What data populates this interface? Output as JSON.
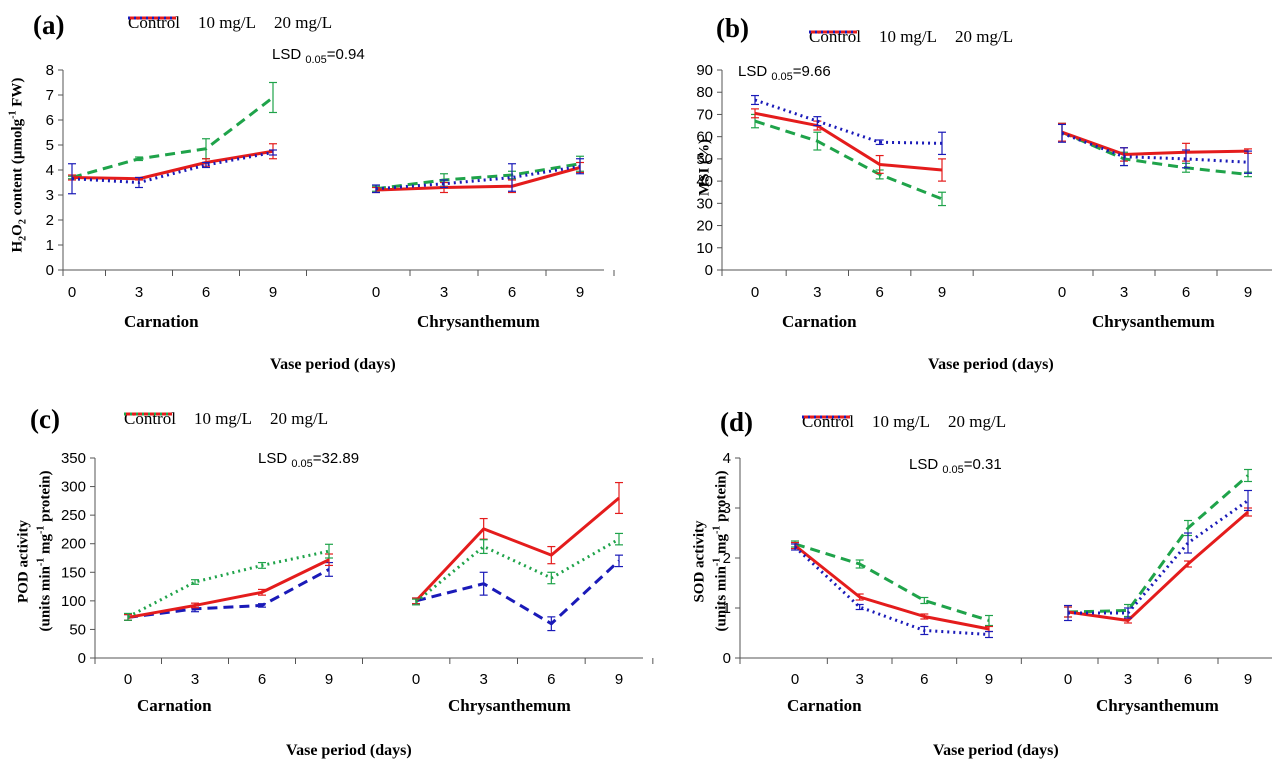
{
  "chart_data": [
    {
      "type": "line",
      "panel_label": "(a)",
      "ylabel_main": "H2O2 content (µmolg",
      "ylabel_sup": "-1",
      "ylabel_tail": " FW)",
      "xlabel": "Vase period (days)",
      "lsd_label": "LSD",
      "lsd_sub": "0.05",
      "lsd_value": "=0.94",
      "ylim": [
        0,
        8
      ],
      "yticks": [
        0,
        1,
        2,
        3,
        4,
        5,
        6,
        7,
        8
      ],
      "groups": [
        "Carnation",
        "Chrysanthemum"
      ],
      "x": [
        0,
        3,
        6,
        9
      ],
      "series_colors": [
        "#1fa34a",
        "#e41c1c",
        "#1a1ab8"
      ],
      "series_styles": [
        "dashed",
        "solid",
        "dotted"
      ],
      "legend": [
        "Control",
        "10 mg/L",
        "20 mg/L"
      ],
      "series": [
        {
          "name": "Control",
          "group_values": [
            [
              3.7,
              4.45,
              4.85,
              6.9
            ],
            [
              3.25,
              3.6,
              3.8,
              4.25
            ]
          ],
          "errors": [
            [
              0.05,
              0.07,
              0.4,
              0.6
            ],
            [
              0.1,
              0.25,
              0.15,
              0.3
            ]
          ]
        },
        {
          "name": "10 mg/L",
          "group_values": [
            [
              3.7,
              3.65,
              4.3,
              4.75
            ],
            [
              3.2,
              3.3,
              3.35,
              4.1
            ]
          ],
          "errors": [
            [
              0.1,
              0.05,
              0.15,
              0.3
            ],
            [
              0.1,
              0.2,
              0.25,
              0.2
            ]
          ]
        },
        {
          "name": "20 mg/L",
          "group_values": [
            [
              3.65,
              3.5,
              4.2,
              4.7
            ],
            [
              3.25,
              3.45,
              3.7,
              4.15
            ]
          ],
          "errors": [
            [
              0.6,
              0.2,
              0.1,
              0.1
            ],
            [
              0.15,
              0.15,
              0.55,
              0.3
            ]
          ]
        }
      ]
    },
    {
      "type": "line",
      "panel_label": "(b)",
      "ylabel_main": "MSI (%)",
      "xlabel": "Vase period (days)",
      "lsd_label": "LSD",
      "lsd_sub": "0.05",
      "lsd_value": "=9.66",
      "ylim": [
        0,
        90
      ],
      "yticks": [
        0,
        10,
        20,
        30,
        40,
        50,
        60,
        70,
        80,
        90
      ],
      "groups": [
        "Carnation",
        "Chrysanthemum"
      ],
      "x": [
        0,
        3,
        6,
        9
      ],
      "series_colors": [
        "#1fa34a",
        "#e41c1c",
        "#1a1ab8"
      ],
      "series_styles": [
        "dashed",
        "solid",
        "dotted"
      ],
      "legend": [
        "Control",
        "10 mg/L",
        "20 mg/L"
      ],
      "series": [
        {
          "name": "Control",
          "group_values": [
            [
              67,
              58,
              43,
              32
            ],
            [
              62,
              50,
              46,
              43
            ]
          ],
          "errors": [
            [
              3,
              4,
              2,
              3
            ],
            [
              4,
              3,
              2,
              1
            ]
          ]
        },
        {
          "name": "10 mg/L",
          "group_values": [
            [
              70.5,
              65,
              47.5,
              45
            ],
            [
              62,
              52,
              53,
              53.5
            ]
          ],
          "errors": [
            [
              2,
              2,
              4,
              5
            ],
            [
              4,
              3,
              4,
              1
            ]
          ]
        },
        {
          "name": "20 mg/L",
          "group_values": [
            [
              76.5,
              67,
              57.5,
              57
            ],
            [
              61.5,
              51,
              50,
              48.5
            ]
          ],
          "errors": [
            [
              2,
              2,
              1,
              5
            ],
            [
              4,
              4,
              4,
              5
            ]
          ]
        }
      ]
    },
    {
      "type": "line",
      "panel_label": "(c)",
      "ylabel_main": "POD activity",
      "ylabel2_pre": "(units min",
      "ylabel2_sup1": "-1",
      "ylabel2_mid": " mg",
      "ylabel2_sup2": "-1",
      "ylabel2_tail": " protein)",
      "xlabel": "Vase period (days)",
      "lsd_label": "LSD",
      "lsd_sub": "0.05",
      "lsd_value": "=32.89",
      "ylim": [
        0,
        350
      ],
      "yticks": [
        0,
        50,
        100,
        150,
        200,
        250,
        300,
        350
      ],
      "groups": [
        "Carnation",
        "Chrysanthemum"
      ],
      "x": [
        0,
        3,
        6,
        9
      ],
      "series_colors": [
        "#1a1ab8",
        "#e41c1c",
        "#1fa34a"
      ],
      "series_styles": [
        "dashed",
        "solid",
        "dotted"
      ],
      "legend": [
        "Control",
        "10 mg/L",
        "20 mg/L"
      ],
      "series": [
        {
          "name": "Control",
          "group_values": [
            [
              71,
              86,
              92,
              155
            ],
            [
              100,
              130,
              60,
              170
            ]
          ],
          "errors": [
            [
              5,
              5,
              3,
              12
            ],
            [
              5,
              20,
              12,
              10
            ]
          ]
        },
        {
          "name": "10 mg/L",
          "group_values": [
            [
              71,
              92,
              115,
              172
            ],
            [
              100,
              226,
              180,
              280
            ]
          ],
          "errors": [
            [
              5,
              4,
              5,
              10
            ],
            [
              5,
              18,
              15,
              27
            ]
          ]
        },
        {
          "name": "20 mg/L",
          "group_values": [
            [
              72,
              133,
              162,
              187
            ],
            [
              98,
              195,
              140,
              208
            ]
          ],
          "errors": [
            [
              6,
              4,
              5,
              12
            ],
            [
              5,
              12,
              10,
              10
            ]
          ]
        }
      ]
    },
    {
      "type": "line",
      "panel_label": "(d)",
      "ylabel_main": "SOD activity",
      "ylabel2_pre": "(units min",
      "ylabel2_sup1": "-1",
      "ylabel2_mid": " mg",
      "ylabel2_sup2": "-1",
      "ylabel2_tail": " protein)",
      "xlabel": "Vase period (days)",
      "lsd_label": "LSD",
      "lsd_sub": "0.05",
      "lsd_value": "=0.31",
      "ylim": [
        0,
        4
      ],
      "yticks": [
        0,
        1,
        2,
        3,
        4
      ],
      "groups": [
        "Carnation",
        "Chrysanthemum"
      ],
      "x": [
        0,
        3,
        6,
        9
      ],
      "series_colors": [
        "#1fa34a",
        "#e41c1c",
        "#1a1ab8"
      ],
      "series_styles": [
        "dashed",
        "solid",
        "dotted"
      ],
      "legend": [
        "Control",
        "10 mg/L",
        "20 mg/L"
      ],
      "series": [
        {
          "name": "Control",
          "group_values": [
            [
              2.28,
              1.88,
              1.15,
              0.75
            ],
            [
              0.92,
              0.95,
              2.6,
              3.65
            ]
          ],
          "errors": [
            [
              0.06,
              0.08,
              0.06,
              0.1
            ],
            [
              0.1,
              0.12,
              0.15,
              0.12
            ]
          ]
        },
        {
          "name": "10 mg/L",
          "group_values": [
            [
              2.25,
              1.22,
              0.83,
              0.58
            ],
            [
              0.92,
              0.75,
              1.88,
              2.92
            ]
          ],
          "errors": [
            [
              0.06,
              0.06,
              0.05,
              0.05
            ],
            [
              0.1,
              0.05,
              0.06,
              0.08
            ]
          ]
        },
        {
          "name": "20 mg/L",
          "group_values": [
            [
              2.22,
              1.02,
              0.55,
              0.47
            ],
            [
              0.9,
              0.9,
              2.3,
              3.15
            ]
          ],
          "errors": [
            [
              0.06,
              0.05,
              0.08,
              0.06
            ],
            [
              0.15,
              0.1,
              0.2,
              0.2
            ]
          ]
        }
      ]
    }
  ]
}
